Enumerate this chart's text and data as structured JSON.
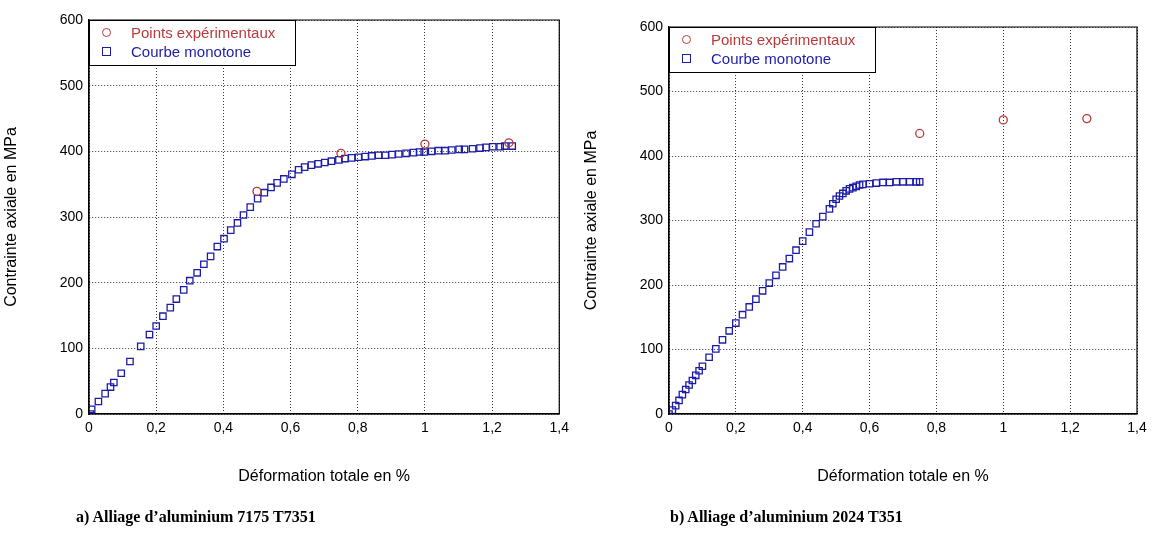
{
  "chart_data": [
    {
      "type": "scatter",
      "title": "a) Alliage d’aluminium 7175 T7351",
      "xlabel": "Déformation totale en %",
      "ylabel": "Contrainte axiale en MPa",
      "xlim": [
        0,
        1.4
      ],
      "ylim": [
        0,
        600
      ],
      "xticks": [
        {
          "value": 0,
          "label": "0"
        },
        {
          "value": 0.2,
          "label": "0,2"
        },
        {
          "value": 0.4,
          "label": "0,4"
        },
        {
          "value": 0.6,
          "label": "0,6"
        },
        {
          "value": 0.8,
          "label": "0,8"
        },
        {
          "value": 1,
          "label": "1"
        },
        {
          "value": 1.2,
          "label": "1,2"
        },
        {
          "value": 1.4,
          "label": "1,4"
        }
      ],
      "yticks": [
        0,
        100,
        200,
        300,
        400,
        500,
        600
      ],
      "grid": true,
      "legend": "top left",
      "series": [
        {
          "name": "Points expérimentaux",
          "color": "#b83a3a",
          "marker": "circle",
          "x": [
            0.5,
            0.75,
            1.0,
            1.25
          ],
          "values": [
            339,
            397,
            411,
            413
          ]
        },
        {
          "name": "Courbe monotone",
          "color": "#1c1ca8",
          "marker": "square",
          "x": [
            0.004,
            0.008,
            0.028,
            0.048,
            0.064,
            0.074,
            0.096,
            0.122,
            0.154,
            0.18,
            0.2,
            0.22,
            0.242,
            0.26,
            0.282,
            0.3,
            0.322,
            0.342,
            0.362,
            0.382,
            0.402,
            0.422,
            0.442,
            0.46,
            0.48,
            0.502,
            0.522,
            0.542,
            0.56,
            0.58,
            0.604,
            0.624,
            0.642,
            0.662,
            0.682,
            0.702,
            0.722,
            0.744,
            0.762,
            0.782,
            0.802,
            0.822,
            0.842,
            0.862,
            0.882,
            0.902,
            0.922,
            0.944,
            0.966,
            0.984,
            0.998,
            1.02,
            1.04,
            1.06,
            1.08,
            1.102,
            1.118,
            1.142,
            1.164,
            1.182,
            1.202,
            1.224,
            1.238,
            1.26
          ],
          "values": [
            0,
            7,
            19,
            31,
            41,
            48,
            62,
            80,
            103,
            121,
            134,
            149,
            162,
            175,
            189,
            203,
            215,
            228,
            240,
            255,
            267,
            280,
            291,
            303,
            315,
            328,
            337,
            345,
            352,
            358,
            365,
            372,
            376,
            379,
            381,
            383,
            385,
            387,
            389,
            390,
            391,
            392,
            393,
            394,
            394,
            395,
            396,
            397,
            398,
            399,
            399,
            400,
            401,
            401,
            402,
            403,
            403,
            404,
            405,
            406,
            407,
            407,
            408,
            408
          ]
        }
      ]
    },
    {
      "type": "scatter",
      "title": "b) Alliage d’aluminium 2024 T351",
      "xlabel": "Déformation totale en %",
      "ylabel": "Contrainte axiale en MPa",
      "xlim": [
        0,
        1.4
      ],
      "ylim": [
        0,
        600
      ],
      "xticks": [
        {
          "value": 0,
          "label": "0"
        },
        {
          "value": 0.2,
          "label": "0,2"
        },
        {
          "value": 0.4,
          "label": "0,4"
        },
        {
          "value": 0.6,
          "label": "0,6"
        },
        {
          "value": 0.8,
          "label": "0,8"
        },
        {
          "value": 1,
          "label": "1"
        },
        {
          "value": 1.2,
          "label": "1,2"
        },
        {
          "value": 1.4,
          "label": "1,4"
        }
      ],
      "yticks": [
        0,
        100,
        200,
        300,
        400,
        500,
        600
      ],
      "grid": true,
      "legend": "top left",
      "series": [
        {
          "name": "Points expérimentaux",
          "color": "#b83a3a",
          "marker": "circle",
          "x": [
            0.75,
            1.0,
            1.25
          ],
          "values": [
            435,
            456,
            458
          ]
        },
        {
          "name": "Courbe monotone",
          "color": "#1c1ca8",
          "marker": "square",
          "x": [
            0,
            0.01,
            0.02,
            0.03,
            0.04,
            0.05,
            0.06,
            0.07,
            0.08,
            0.09,
            0.1,
            0.12,
            0.14,
            0.16,
            0.18,
            0.2,
            0.22,
            0.24,
            0.26,
            0.28,
            0.3,
            0.32,
            0.34,
            0.36,
            0.38,
            0.4,
            0.42,
            0.44,
            0.46,
            0.48,
            0.49,
            0.5,
            0.51,
            0.52,
            0.53,
            0.54,
            0.55,
            0.56,
            0.57,
            0.58,
            0.6,
            0.62,
            0.64,
            0.66,
            0.68,
            0.7,
            0.72,
            0.74,
            0.75
          ],
          "values": [
            0,
            6,
            13,
            21,
            30,
            38,
            45,
            52,
            60,
            67,
            74,
            88,
            101,
            115,
            129,
            141,
            154,
            166,
            178,
            191,
            203,
            215,
            228,
            241,
            254,
            268,
            282,
            295,
            306,
            318,
            326,
            333,
            338,
            342,
            346,
            349,
            351,
            353,
            355,
            356,
            357,
            358,
            359,
            359,
            360,
            360,
            360,
            360,
            360
          ]
        }
      ]
    }
  ]
}
